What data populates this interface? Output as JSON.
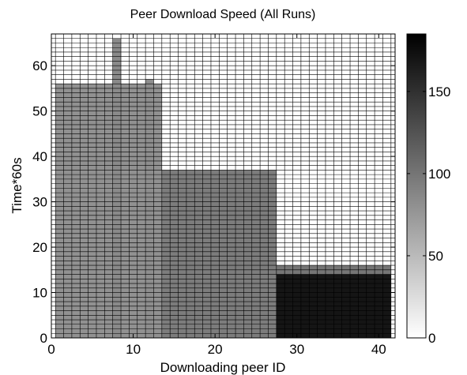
{
  "chart_data": {
    "type": "heatmap",
    "title": "Peer Download Speed (All Runs)",
    "xlabel": "Downloading peer ID",
    "ylabel": "Time*60s",
    "xlim": [
      0,
      42
    ],
    "ylim": [
      0,
      67
    ],
    "x_ticks": [
      0,
      10,
      20,
      30,
      40
    ],
    "y_ticks": [
      0,
      10,
      20,
      30,
      40,
      50,
      60
    ],
    "colorbar": {
      "range": [
        0,
        185
      ],
      "ticks": [
        0,
        50,
        100,
        150
      ]
    },
    "colormap": "gray (white = low, black = high)",
    "grid": true,
    "cells_approx": [
      {
        "peers": [
          1,
          7
        ],
        "time": [
          1,
          56
        ],
        "value": 80
      },
      {
        "peers": [
          8,
          8
        ],
        "time": [
          1,
          66
        ],
        "value": 85
      },
      {
        "peers": [
          9,
          11
        ],
        "time": [
          1,
          56
        ],
        "value": 80
      },
      {
        "peers": [
          12,
          12
        ],
        "time": [
          1,
          57
        ],
        "value": 82
      },
      {
        "peers": [
          13,
          13
        ],
        "time": [
          1,
          56
        ],
        "value": 80
      },
      {
        "peers": [
          14,
          27
        ],
        "time": [
          1,
          37
        ],
        "value": 95
      },
      {
        "peers": [
          28,
          41
        ],
        "time": [
          1,
          16
        ],
        "value": 100
      },
      {
        "peers": [
          28,
          41
        ],
        "time": [
          1,
          14
        ],
        "value": 170
      }
    ]
  }
}
